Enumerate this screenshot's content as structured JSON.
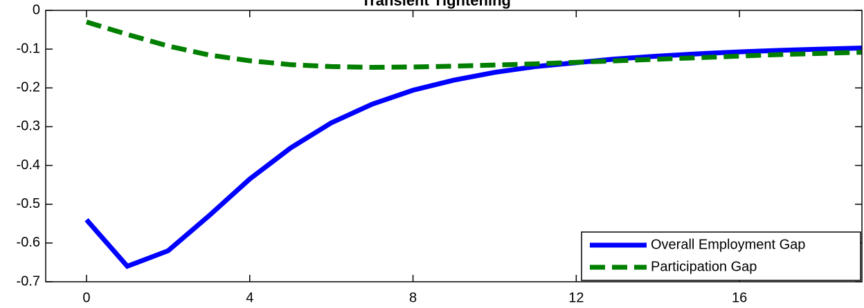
{
  "chart_data": {
    "type": "line",
    "title": "Transient Tightening",
    "x": [
      0,
      1,
      2,
      3,
      4,
      5,
      6,
      7,
      8,
      9,
      10,
      11,
      12,
      13,
      14,
      15,
      16,
      17,
      18,
      19
    ],
    "series": [
      {
        "name": "Overall Employment Gap",
        "color": "#0000ff",
        "dash": "solid",
        "values": [
          -0.54,
          -0.66,
          -0.62,
          -0.53,
          -0.435,
          -0.355,
          -0.29,
          -0.242,
          -0.206,
          -0.18,
          -0.16,
          -0.145,
          -0.135,
          -0.125,
          -0.118,
          -0.112,
          -0.107,
          -0.103,
          -0.1,
          -0.097
        ]
      },
      {
        "name": "Participation Gap",
        "color": "#007f00",
        "dash": "dashed",
        "values": [
          -0.03,
          -0.062,
          -0.092,
          -0.115,
          -0.13,
          -0.14,
          -0.145,
          -0.147,
          -0.146,
          -0.144,
          -0.141,
          -0.138,
          -0.134,
          -0.13,
          -0.126,
          -0.122,
          -0.118,
          -0.114,
          -0.111,
          -0.108
        ]
      }
    ],
    "xlim": [
      -1,
      19
    ],
    "xticks": [
      0,
      4,
      8,
      12,
      16
    ],
    "ylim": [
      -0.7,
      0
    ],
    "yticks": [
      -0.7,
      -0.6,
      -0.5,
      -0.4,
      -0.3,
      -0.2,
      -0.1,
      0
    ],
    "grid": false,
    "legend": "lower right"
  }
}
